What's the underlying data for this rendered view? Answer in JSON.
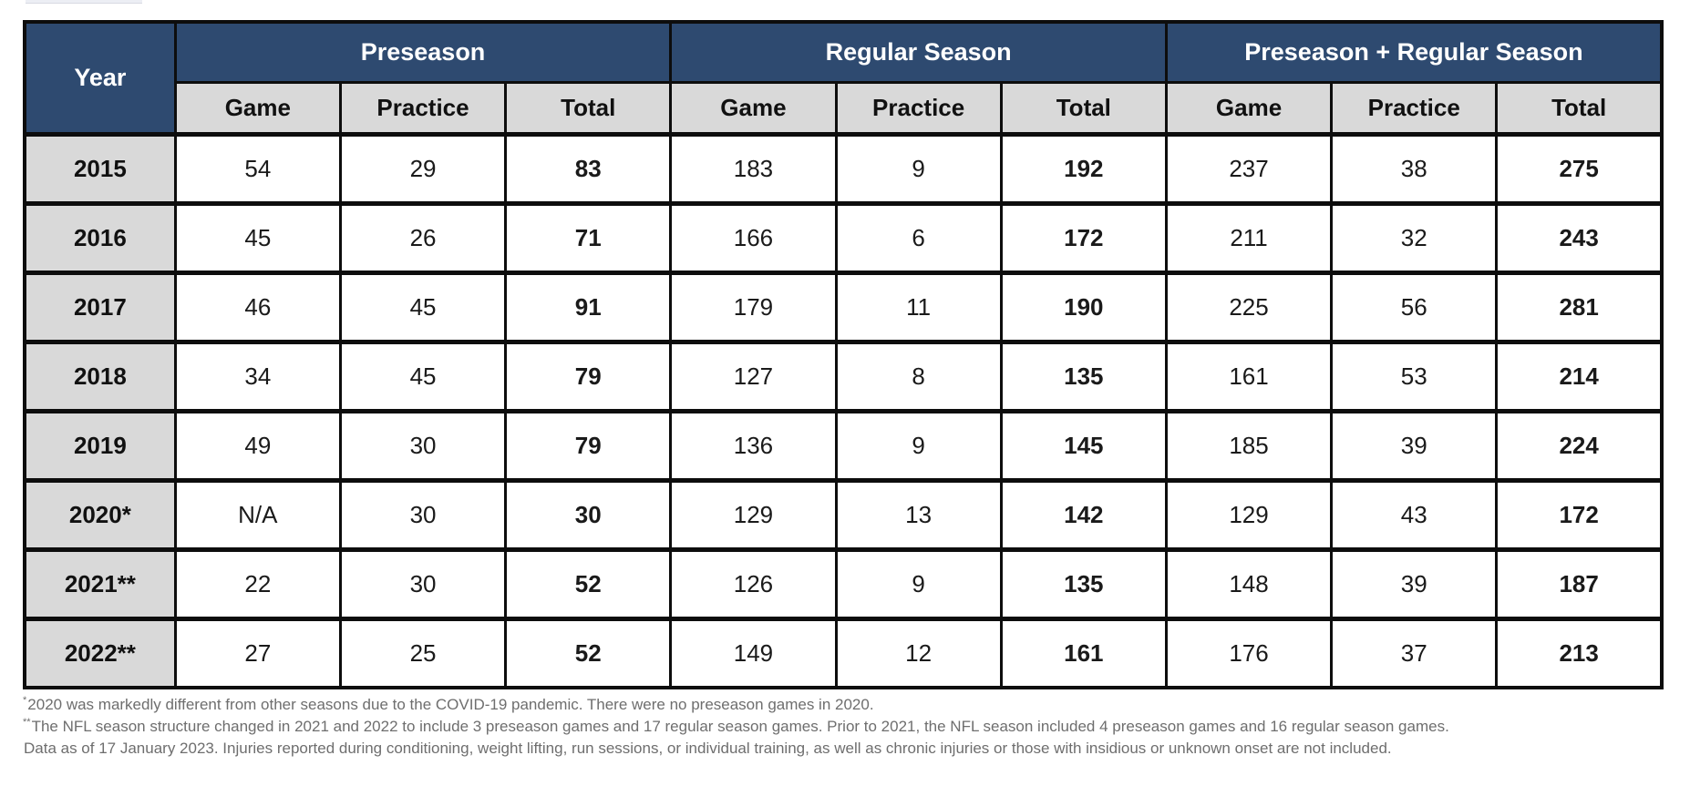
{
  "accent_colors": {
    "header_navy": "#2e4a70",
    "subheader_gray": "#d9d9d9",
    "border_black": "#0d0d0d",
    "footnote_gray": "#6e6e6e"
  },
  "table": {
    "year_header": "Year",
    "groups": [
      {
        "label": "Preseason"
      },
      {
        "label": "Regular Season"
      },
      {
        "label": "Preseason + Regular Season"
      }
    ],
    "sub_columns": [
      "Game",
      "Practice",
      "Total"
    ],
    "total_column_indexes": [
      2,
      5,
      8
    ],
    "rows": [
      {
        "year": "2015",
        "values": [
          "54",
          "29",
          "83",
          "183",
          "9",
          "192",
          "237",
          "38",
          "275"
        ]
      },
      {
        "year": "2016",
        "values": [
          "45",
          "26",
          "71",
          "166",
          "6",
          "172",
          "211",
          "32",
          "243"
        ]
      },
      {
        "year": "2017",
        "values": [
          "46",
          "45",
          "91",
          "179",
          "11",
          "190",
          "225",
          "56",
          "281"
        ]
      },
      {
        "year": "2018",
        "values": [
          "34",
          "45",
          "79",
          "127",
          "8",
          "135",
          "161",
          "53",
          "214"
        ]
      },
      {
        "year": "2019",
        "values": [
          "49",
          "30",
          "79",
          "136",
          "9",
          "145",
          "185",
          "39",
          "224"
        ]
      },
      {
        "year": "2020*",
        "values": [
          "N/A",
          "30",
          "30",
          "129",
          "13",
          "142",
          "129",
          "43",
          "172"
        ]
      },
      {
        "year": "2021**",
        "values": [
          "22",
          "30",
          "52",
          "126",
          "9",
          "135",
          "148",
          "39",
          "187"
        ]
      },
      {
        "year": "2022**",
        "values": [
          "27",
          "25",
          "52",
          "149",
          "12",
          "161",
          "176",
          "37",
          "213"
        ]
      }
    ]
  },
  "footnotes": [
    {
      "marker": "*",
      "text": "2020 was markedly different from other seasons due to the COVID-19 pandemic. There were no preseason games in 2020."
    },
    {
      "marker": "**",
      "text": "The NFL season structure changed in 2021 and 2022 to include 3 preseason games and 17 regular season games. Prior to 2021, the NFL season included 4 preseason games and 16 regular season games."
    },
    {
      "marker": "",
      "text": "Data as of 17 January 2023. Injuries reported during conditioning, weight lifting, run sessions, or individual training, as well as chronic injuries or those with insidious or unknown onset are not included."
    }
  ]
}
